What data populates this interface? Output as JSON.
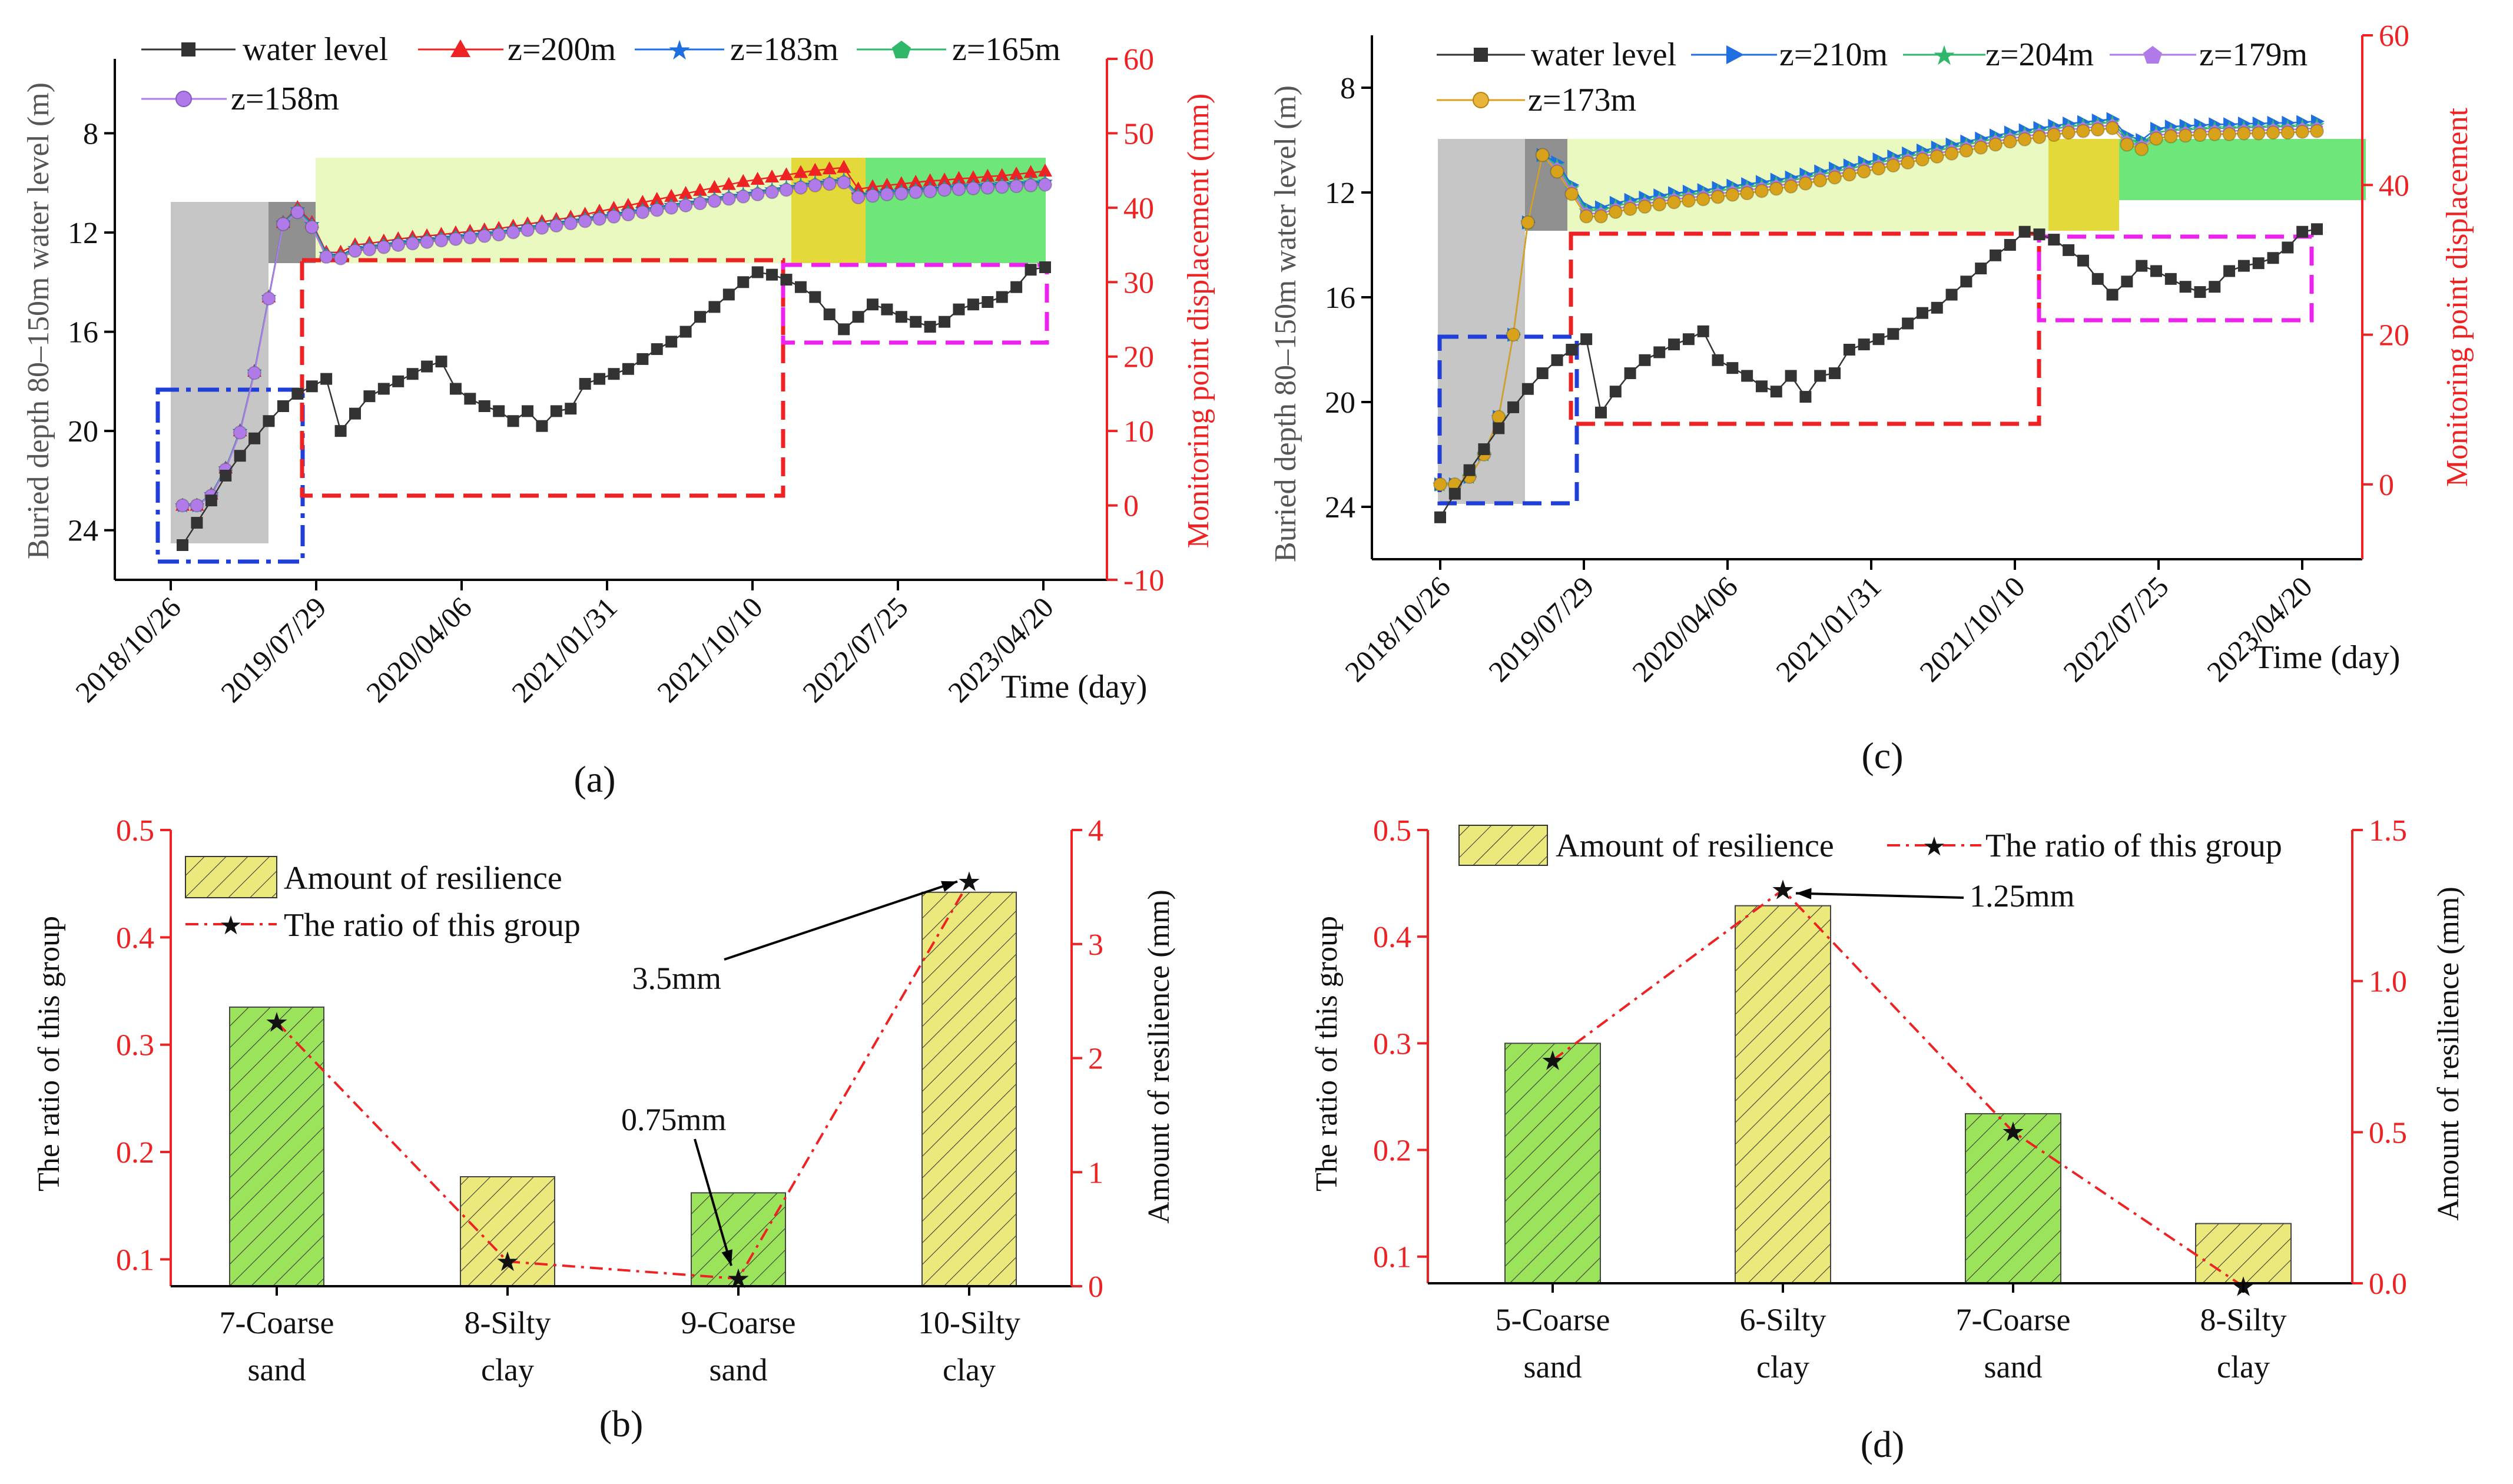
{
  "colors": {
    "water": "#333333",
    "red": "#ee2222",
    "blue": "#1f6fe0",
    "green": "#2fb86a",
    "purple": "#b07ae8",
    "orange": "#d9a21b",
    "gray_zone": "#c6c6c6",
    "dark_zone": "#909090",
    "light_green_zone": "#eaf9c0",
    "yellow_zone": "#e4d93a",
    "bright_green_zone": "#6ee67a",
    "bar_green": "#9be35a",
    "bar_yellow": "#ece97c",
    "magenta": "#ee22ee"
  },
  "labels": {
    "a": "(a)",
    "b": "(b)",
    "c": "(c)",
    "d": "(d)",
    "time": "Time (day)",
    "left_axis": "Buried depth 80–150m water level (m)",
    "right_axis": "Monitoring point displacement (mm)",
    "ratio_axis": "The ratio of this group",
    "resilience_axis": "Amount of resilience (mm)"
  },
  "chart_data": [
    {
      "id": "a",
      "type": "line",
      "title": "",
      "xlabel": "Time (day)",
      "ylabel": "Buried depth 80–150m water level (m)",
      "y2label": "Monitoring point displacement (mm)",
      "x_ticks": [
        "2018/10/26",
        "2019/07/29",
        "2020/04/06",
        "2021/01/31",
        "2021/10/10",
        "2022/07/25",
        "2023/04/20"
      ],
      "ylim": [
        26,
        5
      ],
      "y_ticks": [
        8,
        12,
        16,
        20,
        24
      ],
      "y2lim": [
        -10,
        60
      ],
      "y2_ticks": [
        -10,
        0,
        10,
        20,
        30,
        40,
        50,
        60
      ],
      "water_level": [
        24.6,
        23.7,
        22.8,
        21.8,
        21.0,
        20.3,
        19.6,
        19.0,
        18.5,
        18.2,
        17.9,
        20.0,
        19.3,
        18.6,
        18.3,
        18.0,
        17.7,
        17.4,
        17.2,
        18.3,
        18.7,
        19.0,
        19.2,
        19.6,
        19.2,
        19.8,
        19.2,
        19.1,
        18.1,
        17.9,
        17.7,
        17.5,
        17.1,
        16.7,
        16.4,
        16.0,
        15.4,
        15.0,
        14.5,
        14.0,
        13.6,
        13.7,
        13.9,
        14.2,
        14.6,
        15.3,
        15.9,
        15.4,
        14.9,
        15.1,
        15.4,
        15.6,
        15.8,
        15.6,
        15.1,
        14.9,
        14.8,
        14.6,
        14.2,
        13.5,
        13.4
      ],
      "series": [
        {
          "name": "z=200m",
          "color_key": "red",
          "marker": "triangle",
          "values": [
            0,
            0,
            1.5,
            5,
            10,
            18,
            28,
            38,
            40,
            38,
            34,
            34,
            35,
            35.2,
            35.5,
            35.8,
            36,
            36.2,
            36.4,
            36.6,
            36.8,
            37,
            37.2,
            37.5,
            37.8,
            38.1,
            38.4,
            38.7,
            39.1,
            39.5,
            39.9,
            40.3,
            40.7,
            41.1,
            41.5,
            41.9,
            42.3,
            42.7,
            43.1,
            43.5,
            43.8,
            44.1,
            44.4,
            44.7,
            45.0,
            45.2,
            45.4,
            42.5,
            42.8,
            43.0,
            43.2,
            43.4,
            43.6,
            43.7,
            43.9,
            44.0,
            44.2,
            44.3,
            44.5,
            44.7,
            44.9
          ]
        },
        {
          "name": "z=183m",
          "color_key": "blue",
          "marker": "star",
          "values": [
            0,
            0,
            1.5,
            5,
            10,
            18,
            28,
            38,
            39.8,
            37.8,
            33.8,
            33.6,
            34.6,
            34.8,
            35.1,
            35.4,
            35.6,
            35.8,
            36.0,
            36.2,
            36.4,
            36.6,
            36.8,
            37.1,
            37.4,
            37.7,
            38.0,
            38.3,
            38.6,
            38.9,
            39.2,
            39.5,
            39.8,
            40.1,
            40.4,
            40.7,
            41.0,
            41.3,
            41.6,
            41.9,
            42.2,
            42.5,
            42.8,
            43.1,
            43.4,
            43.6,
            43.8,
            41.8,
            42.0,
            42.2,
            42.3,
            42.5,
            42.6,
            42.8,
            42.9,
            43.0,
            43.1,
            43.2,
            43.3,
            43.4,
            43.5
          ]
        },
        {
          "name": "z=165m",
          "color_key": "green",
          "marker": "pentagon",
          "values": [
            0,
            0,
            1.4,
            4.9,
            9.9,
            17.9,
            27.9,
            37.9,
            39.6,
            37.6,
            33.6,
            33.4,
            34.4,
            34.6,
            34.9,
            35.2,
            35.4,
            35.6,
            35.8,
            36.0,
            36.2,
            36.4,
            36.6,
            36.9,
            37.2,
            37.5,
            37.8,
            38.1,
            38.4,
            38.7,
            39.0,
            39.3,
            39.6,
            39.9,
            40.2,
            40.5,
            40.8,
            41.1,
            41.4,
            41.7,
            42.0,
            42.3,
            42.6,
            42.9,
            43.2,
            43.4,
            43.6,
            41.6,
            41.8,
            42.0,
            42.1,
            42.3,
            42.4,
            42.6,
            42.7,
            42.8,
            42.9,
            43.0,
            43.1,
            43.2,
            43.3
          ]
        },
        {
          "name": "z=158m",
          "color_key": "purple",
          "marker": "circle",
          "values": [
            0,
            0,
            1.3,
            4.8,
            9.8,
            17.8,
            27.8,
            37.8,
            39.4,
            37.4,
            33.4,
            33.2,
            34.2,
            34.4,
            34.7,
            35.0,
            35.2,
            35.4,
            35.6,
            35.8,
            36.0,
            36.2,
            36.4,
            36.7,
            37.0,
            37.3,
            37.6,
            37.9,
            38.2,
            38.5,
            38.8,
            39.1,
            39.4,
            39.7,
            40.0,
            40.3,
            40.6,
            40.9,
            41.2,
            41.5,
            41.8,
            42.1,
            42.4,
            42.7,
            43.0,
            43.2,
            43.4,
            41.4,
            41.6,
            41.8,
            41.9,
            42.1,
            42.2,
            42.4,
            42.5,
            42.6,
            42.7,
            42.8,
            42.9,
            43.0,
            43.1
          ]
        }
      ]
    },
    {
      "id": "b",
      "type": "bar",
      "categories": [
        "7-Coarse\nsand",
        "8-Silty\nclay",
        "9-Coarse\nsand",
        "10-Silty\nclay"
      ],
      "category_colors": [
        "bar_green",
        "bar_yellow",
        "bar_green",
        "bar_yellow"
      ],
      "ylabel": "The ratio of this group",
      "y2label": "Amount of resilience (mm)",
      "ylim": [
        0.075,
        0.5
      ],
      "y_ticks": [
        0.1,
        0.2,
        0.3,
        0.4,
        0.5
      ],
      "y2lim": [
        0,
        4
      ],
      "y2_ticks": [
        0,
        1,
        2,
        3,
        4
      ],
      "series": [
        {
          "name": "Amount of resilience",
          "type": "bar",
          "values": [
            0.335,
            0.177,
            0.162,
            0.442
          ]
        },
        {
          "name": "The ratio of this group",
          "type": "line",
          "values": [
            0.321,
            0.098,
            0.082,
            0.452
          ]
        }
      ],
      "annotations": [
        {
          "text": "3.5mm",
          "category_index": 3
        },
        {
          "text": "0.75mm",
          "category_index": 2
        }
      ]
    },
    {
      "id": "c",
      "type": "line",
      "title": "",
      "xlabel": "Time (day)",
      "ylabel": "Buried depth 80–150m water level (m)",
      "y2label": "Monitoring point displacement",
      "x_ticks": [
        "2018/10/26",
        "2019/07/29",
        "2020/04/06",
        "2021/01/31",
        "2021/10/10",
        "2022/07/25",
        "2023/04/20"
      ],
      "ylim": [
        26,
        6
      ],
      "y_ticks": [
        8,
        12,
        16,
        20,
        24
      ],
      "y2lim": [
        -10,
        60
      ],
      "y2_ticks": [
        0,
        20,
        40,
        60
      ],
      "water_level": [
        24.4,
        23.5,
        22.6,
        21.8,
        21.0,
        20.2,
        19.5,
        18.9,
        18.4,
        18.0,
        17.6,
        20.4,
        19.6,
        18.9,
        18.4,
        18.1,
        17.8,
        17.6,
        17.3,
        18.4,
        18.7,
        19.0,
        19.4,
        19.6,
        19.0,
        19.8,
        19.0,
        18.9,
        18.0,
        17.8,
        17.6,
        17.4,
        17.0,
        16.6,
        16.4,
        15.9,
        15.4,
        14.9,
        14.4,
        14.0,
        13.5,
        13.6,
        13.8,
        14.2,
        14.6,
        15.3,
        15.9,
        15.4,
        14.8,
        15.0,
        15.3,
        15.6,
        15.8,
        15.6,
        15.0,
        14.8,
        14.7,
        14.5,
        14.1,
        13.5,
        13.4
      ],
      "series": [
        {
          "name": "z=210m",
          "color_key": "blue",
          "marker": "triangle-right",
          "values": [
            0,
            0,
            1,
            4,
            9,
            20,
            35,
            44,
            43,
            40,
            37,
            37,
            37.6,
            38,
            38.3,
            38.6,
            38.9,
            39.1,
            39.3,
            39.6,
            39.9,
            40.1,
            40.4,
            40.7,
            41.0,
            41.4,
            41.8,
            42.2,
            42.6,
            43.0,
            43.4,
            43.8,
            44.2,
            44.6,
            45.0,
            45.4,
            45.8,
            46.2,
            46.6,
            47.0,
            47.3,
            47.6,
            47.9,
            48.2,
            48.4,
            48.6,
            48.8,
            46.6,
            46.0,
            47.5,
            47.8,
            47.9,
            48.0,
            48.1,
            48.1,
            48.2,
            48.2,
            48.3,
            48.3,
            48.4,
            48.5
          ]
        },
        {
          "name": "z=204m",
          "color_key": "green",
          "marker": "star",
          "values": [
            0,
            0,
            1,
            4,
            9,
            20,
            35,
            44,
            42.6,
            39.6,
            36.6,
            36.6,
            37.2,
            37.6,
            37.9,
            38.2,
            38.5,
            38.7,
            38.9,
            39.2,
            39.5,
            39.7,
            40.0,
            40.3,
            40.6,
            41.0,
            41.4,
            41.8,
            42.2,
            42.6,
            43.0,
            43.4,
            43.8,
            44.2,
            44.6,
            45.0,
            45.4,
            45.8,
            46.2,
            46.6,
            46.9,
            47.2,
            47.5,
            47.8,
            48.0,
            48.2,
            48.4,
            46.2,
            45.6,
            47.0,
            47.3,
            47.4,
            47.5,
            47.6,
            47.6,
            47.7,
            47.7,
            47.8,
            47.8,
            47.9,
            48.0
          ]
        },
        {
          "name": "z=179m",
          "color_key": "purple",
          "marker": "pentagon",
          "values": [
            0,
            0,
            1,
            4,
            9,
            20,
            35,
            44,
            42.2,
            39.2,
            36.2,
            36.2,
            36.8,
            37.2,
            37.5,
            37.8,
            38.1,
            38.3,
            38.5,
            38.8,
            39.1,
            39.3,
            39.6,
            39.9,
            40.2,
            40.6,
            41.0,
            41.4,
            41.8,
            42.2,
            42.6,
            43.0,
            43.4,
            43.8,
            44.2,
            44.6,
            45.0,
            45.4,
            45.8,
            46.2,
            46.5,
            46.8,
            47.1,
            47.4,
            47.6,
            47.8,
            48.0,
            45.8,
            45.2,
            46.6,
            46.9,
            47.0,
            47.1,
            47.2,
            47.2,
            47.3,
            47.3,
            47.4,
            47.4,
            47.5,
            47.6
          ]
        },
        {
          "name": "z=173m",
          "color_key": "orange",
          "marker": "circle",
          "values": [
            0,
            0,
            1,
            4,
            9,
            20,
            35,
            44,
            41.8,
            38.8,
            35.8,
            35.8,
            36.4,
            36.8,
            37.1,
            37.4,
            37.7,
            37.9,
            38.1,
            38.4,
            38.7,
            38.9,
            39.2,
            39.5,
            39.8,
            40.2,
            40.6,
            41.0,
            41.4,
            41.8,
            42.2,
            42.6,
            43.0,
            43.4,
            43.8,
            44.2,
            44.6,
            45.0,
            45.4,
            45.8,
            46.1,
            46.4,
            46.7,
            47.0,
            47.2,
            47.4,
            47.6,
            45.4,
            44.8,
            46.2,
            46.5,
            46.6,
            46.7,
            46.8,
            46.8,
            46.9,
            46.9,
            47.0,
            47.0,
            47.1,
            47.2
          ]
        }
      ]
    },
    {
      "id": "d",
      "type": "bar",
      "categories": [
        "5-Coarse\nsand",
        "6-Silty\nclay",
        "7-Coarse\nsand",
        "8-Silty\nclay"
      ],
      "category_colors": [
        "bar_green",
        "bar_yellow",
        "bar_green",
        "bar_yellow"
      ],
      "ylabel": "The ratio of this group",
      "y2label": "Amount of resilience (mm)",
      "ylim": [
        0.075,
        0.5
      ],
      "y_ticks": [
        0.1,
        0.2,
        0.3,
        0.4,
        0.5
      ],
      "y2lim": [
        0,
        1.5
      ],
      "y2_ticks": [
        0.0,
        0.5,
        1.0,
        1.5
      ],
      "series": [
        {
          "name": "Amount of resilience",
          "type": "bar",
          "values": [
            0.3,
            0.429,
            0.234,
            0.131
          ]
        },
        {
          "name": "The ratio of this group",
          "type": "line",
          "values": [
            0.284,
            0.444,
            0.217,
            0.072
          ]
        }
      ],
      "annotations": [
        {
          "text": "1.25mm",
          "category_index": 1
        }
      ]
    }
  ]
}
